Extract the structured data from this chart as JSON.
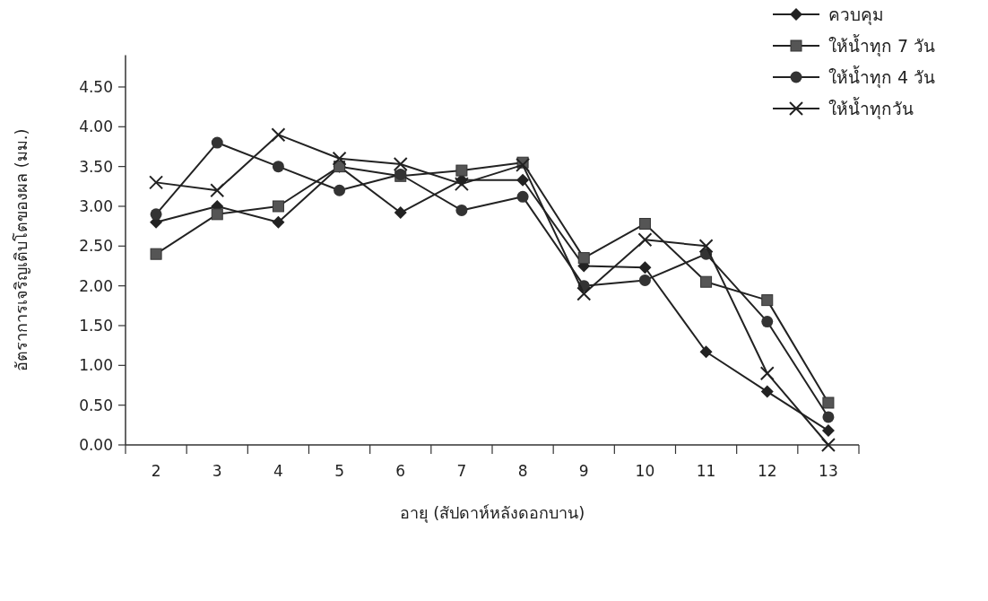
{
  "chart_data": {
    "type": "line",
    "xlabel": "อายุ (สัปดาห์หลังดอกบาน)",
    "ylabel": "อัตราการเจริญเติบโตของผล (มม.)",
    "categories": [
      "2",
      "3",
      "4",
      "5",
      "6",
      "7",
      "8",
      "9",
      "10",
      "11",
      "12",
      "13"
    ],
    "ylim": [
      0,
      4.9
    ],
    "yticks": [
      {
        "value": 0,
        "label": "0.00"
      },
      {
        "value": 0.5,
        "label": "0.50"
      },
      {
        "value": 1,
        "label": "1.00"
      },
      {
        "value": 1.5,
        "label": "1.50"
      },
      {
        "value": 2,
        "label": "2.00"
      },
      {
        "value": 2.5,
        "label": "2.50"
      },
      {
        "value": 3,
        "label": "3.00"
      },
      {
        "value": 3.5,
        "label": "3.50"
      },
      {
        "value": 4,
        "label": "4.00"
      },
      {
        "value": 4.5,
        "label": "4.50"
      }
    ],
    "grid": false,
    "legend": "top right",
    "line_style": "solid",
    "series": [
      {
        "name": "ควบคุม",
        "color": "#222222",
        "marker": "diamond",
        "values": [
          2.8,
          3.0,
          2.8,
          3.5,
          2.92,
          3.33,
          3.33,
          2.25,
          2.23,
          1.17,
          0.67,
          0.18
        ]
      },
      {
        "name": "ให้น้ำทุก 7 วัน",
        "color": "#555555",
        "marker": "square",
        "values": [
          2.4,
          2.9,
          3.0,
          3.5,
          3.38,
          3.45,
          3.55,
          2.35,
          2.78,
          2.05,
          1.82,
          0.53
        ]
      },
      {
        "name": "ให้น้ำทุก 4 วัน",
        "color": "#333333",
        "marker": "circle",
        "values": [
          2.9,
          3.8,
          3.5,
          3.2,
          3.4,
          2.95,
          3.12,
          2.0,
          2.07,
          2.4,
          1.55,
          0.35
        ]
      },
      {
        "name": "ให้น้ำทุกวัน",
        "color": "#222222",
        "marker": "cross",
        "values": [
          3.3,
          3.2,
          3.9,
          3.6,
          3.53,
          3.28,
          3.52,
          1.9,
          2.58,
          2.5,
          0.9,
          0.0
        ]
      }
    ]
  }
}
